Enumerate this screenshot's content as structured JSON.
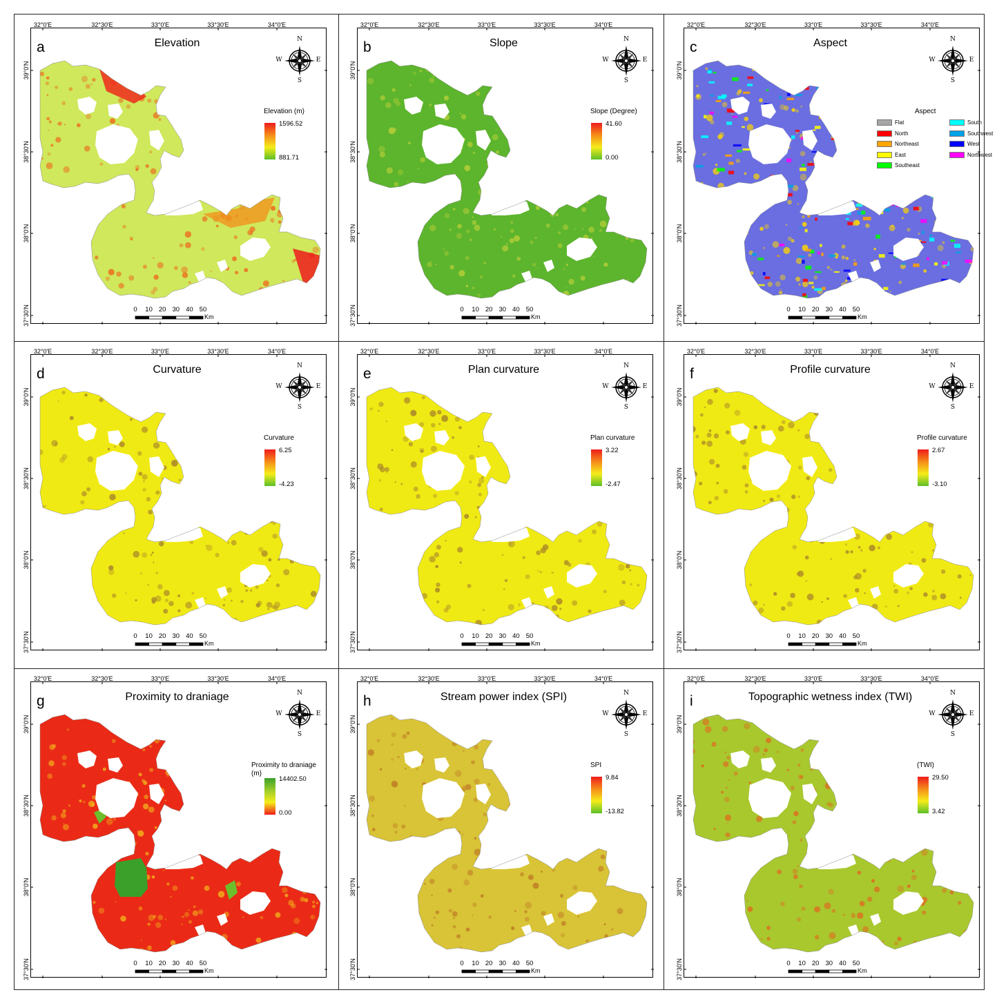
{
  "common": {
    "lon_ticks": [
      "32°0'E",
      "32°30'E",
      "33°0'E",
      "33°30'E",
      "34°0'E"
    ],
    "lat_ticks": [
      "39°0'N",
      "38°30'N",
      "38°0'N",
      "37°30'N"
    ],
    "compass": {
      "n": "N",
      "s": "S",
      "e": "E",
      "w": "W"
    },
    "scale": {
      "labels": [
        "0",
        "10",
        "20",
        "30",
        "40",
        "50"
      ],
      "unit": "Km"
    }
  },
  "panels": [
    {
      "letter": "a",
      "title": "Elevation",
      "legend_title": "Elevation (m)",
      "max": "1596.52",
      "min": "881.71",
      "palette": [
        "#ee1c1c",
        "#f58c1a",
        "#f5ec1a",
        "#5cbf2a"
      ],
      "fill": "#cfe85c",
      "texture": "#ee6a1e"
    },
    {
      "letter": "b",
      "title": "Slope",
      "legend_title": "Slope (Degree)",
      "max": "41.60",
      "min": "0.00",
      "palette": [
        "#ee1c1c",
        "#f58c1a",
        "#f5ec1a",
        "#5cbf2a"
      ],
      "fill": "#5cb52c",
      "texture": "#b8cf3a"
    },
    {
      "letter": "c",
      "title": "Aspect",
      "legend_title": "Aspect",
      "aspect_classes": [
        {
          "label": "Flat",
          "color": "#a6a6a6"
        },
        {
          "label": "North",
          "color": "#ff0000"
        },
        {
          "label": "Northeast",
          "color": "#ffa500"
        },
        {
          "label": "East",
          "color": "#ffff00"
        },
        {
          "label": "Southeast",
          "color": "#00ff00"
        },
        {
          "label": "South",
          "color": "#00ffff"
        },
        {
          "label": "Southwest",
          "color": "#00a2e8"
        },
        {
          "label": "West",
          "color": "#0000ff"
        },
        {
          "label": "Northwest",
          "color": "#ff00ff"
        }
      ],
      "fill": "#6a6ee0",
      "texture": "#ffd700"
    },
    {
      "letter": "d",
      "title": "Curvature",
      "legend_title": "Curvature",
      "max": "6.25",
      "min": "-4.23",
      "palette": [
        "#ee1c1c",
        "#f58c1a",
        "#f5ec1a",
        "#5cbf2a"
      ],
      "fill": "#f0ea14",
      "texture": "#a8862a"
    },
    {
      "letter": "e",
      "title": "Plan curvature",
      "legend_title": "Plan curvature",
      "max": "3.22",
      "min": "-2.47",
      "palette": [
        "#ee1c1c",
        "#f58c1a",
        "#f5ec1a",
        "#5cbf2a"
      ],
      "fill": "#f0ea14",
      "texture": "#a8862a"
    },
    {
      "letter": "f",
      "title": "Profile curvature",
      "legend_title": "Profile curvature",
      "max": "2.67",
      "min": "-3.10",
      "palette": [
        "#ee1c1c",
        "#f58c1a",
        "#f5ec1a",
        "#5cbf2a"
      ],
      "fill": "#f0ea14",
      "texture": "#a8862a"
    },
    {
      "letter": "g",
      "title": "Proximity to draniage",
      "legend_title": "Proximity to draniage\n(m)",
      "max": "14402.50",
      "min": "0.00",
      "palette": [
        "#3aa02a",
        "#9ccc2a",
        "#f5ec1a",
        "#ee1c1c"
      ],
      "fill": "#ea2a16",
      "texture": "#f2b21c"
    },
    {
      "letter": "h",
      "title": "Stream power index (SPI)",
      "legend_title": "SPI",
      "max": "9.84",
      "min": "-13.82",
      "palette": [
        "#ee1c1c",
        "#f58c1a",
        "#f5ec1a",
        "#5cbf2a"
      ],
      "fill": "#d8c436",
      "texture": "#c07a26"
    },
    {
      "letter": "i",
      "title": "Topographic wetness index (TWI)",
      "legend_title": "(TWI)",
      "max": "29.50",
      "min": "3.42",
      "palette": [
        "#ee1c1c",
        "#f58c1a",
        "#f5ec1a",
        "#5cbf2a"
      ],
      "fill": "#a8c82e",
      "texture": "#e06a1e"
    }
  ]
}
